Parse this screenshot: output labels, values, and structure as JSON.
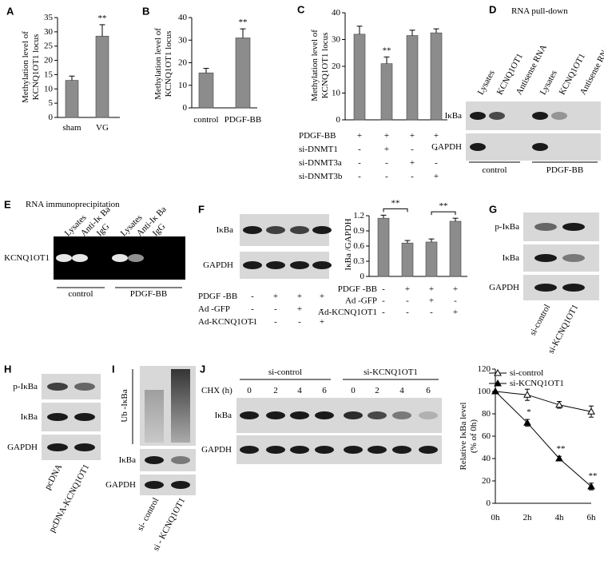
{
  "chart_data": [
    {
      "type": "bar",
      "panel": "A",
      "ylabel": [
        "Methylation level of",
        "KCNQ1OT1 locus"
      ],
      "categories": [
        "sham",
        "VG"
      ],
      "values": [
        13,
        28.5
      ],
      "errors": [
        1.5,
        4
      ],
      "annotations": [
        "**"
      ],
      "color": "#8c8c8c",
      "ylim": [
        0,
        35
      ],
      "yticks": [
        0,
        5,
        10,
        15,
        20,
        25,
        30,
        35
      ]
    },
    {
      "type": "bar",
      "panel": "B",
      "ylabel": [
        "Methylation level of",
        "KCNQ1OT1 locus"
      ],
      "categories": [
        "control",
        "PDGF-BB"
      ],
      "values": [
        15.5,
        31
      ],
      "errors": [
        2,
        4
      ],
      "annotations": [
        "**"
      ],
      "color": "#8c8c8c",
      "ylim": [
        0,
        40
      ],
      "yticks": [
        0,
        10,
        20,
        30,
        40
      ]
    },
    {
      "type": "bar",
      "panel": "C",
      "ylabel": [
        "Methylation level of",
        "KCNQ1OT1 locus"
      ],
      "values": [
        32,
        21,
        31.5,
        32.5
      ],
      "errors": [
        3,
        2.5,
        2,
        1.5
      ],
      "annotations": [
        "**"
      ],
      "color": "#8c8c8c",
      "ylim": [
        0,
        40
      ],
      "yticks": [
        0,
        10,
        20,
        30,
        40
      ],
      "treatments": [
        {
          "label": "PDGF-BB",
          "signs": [
            "+",
            "+",
            "+",
            "+"
          ]
        },
        {
          "label": "si-DNMT1",
          "signs": [
            "-",
            "+",
            "-",
            "-"
          ]
        },
        {
          "label": "si-DNMT3a",
          "signs": [
            "-",
            "-",
            "+",
            "-"
          ]
        },
        {
          "label": "si-DNMT3b",
          "signs": [
            "-",
            "-",
            "-",
            "+"
          ]
        }
      ]
    },
    {
      "type": "bar",
      "ylabel": [
        "IκBa /GAPDH"
      ],
      "values": [
        1.15,
        0.66,
        0.68,
        1.09
      ],
      "errors": [
        0.06,
        0.05,
        0.06,
        0.06
      ],
      "annotations": [
        "**",
        "**"
      ],
      "color": "#8c8c8c",
      "ylim": [
        0,
        1.2
      ],
      "yticks": [
        0,
        0.3,
        0.6,
        0.9,
        1.2
      ],
      "treatments": [
        {
          "label": "PDGF -BB",
          "signs": [
            "-",
            "+",
            "+",
            "+"
          ]
        },
        {
          "label": "Ad -GFP",
          "signs": [
            "-",
            "-",
            "+",
            "-"
          ]
        },
        {
          "label": "Ad-KCNQ1OT1",
          "signs": [
            "-",
            "-",
            "-",
            "+"
          ]
        }
      ]
    },
    {
      "type": "line",
      "ylabel": [
        "Relative IκBa level",
        "(% of 0h)"
      ],
      "categories": [
        "0h",
        "2h",
        "4h",
        "6h"
      ],
      "annotations": [
        "*",
        "**",
        "**"
      ],
      "ylim": [
        0,
        120
      ],
      "yticks": [
        0,
        20,
        40,
        60,
        80,
        100,
        120
      ],
      "series": [
        {
          "name": "si-control",
          "color": "#000000",
          "marker": "open-triangle",
          "values": [
            100,
            97,
            88,
            82
          ],
          "errors": [
            0,
            5,
            3,
            5
          ]
        },
        {
          "name": "si-KCNQ1OT1",
          "color": "#000000",
          "marker": "filled-triangle",
          "values": [
            100,
            72,
            40,
            15
          ],
          "errors": [
            0,
            3,
            2,
            3
          ]
        }
      ]
    }
  ],
  "blots": [
    {
      "panel": "D",
      "title": "RNA pull-down",
      "lanes": [
        "Lysates",
        "KCNQ1OT1",
        "Antisense RNA",
        "Lysates",
        "KCNQ1OT1",
        "Antisense RNA"
      ],
      "rows": [
        "IκBa",
        "GAPDH"
      ],
      "groups": [
        "control",
        "PDGF-BB"
      ]
    },
    {
      "panel": "E",
      "title": "RNA immunoprecipitation",
      "lanes": [
        "Lysates",
        "Anti-Iκ Ba",
        "IgG",
        "Lysates",
        "Anti-Iκ Ba",
        "IgG"
      ],
      "rows": [
        "KCNQ1OT1"
      ],
      "groups": [
        "control",
        "PDGF-BB"
      ]
    },
    {
      "panel": "F",
      "rows": [
        "IκBa",
        "GAPDH"
      ],
      "treatments": [
        {
          "label": "PDGF -BB",
          "signs": [
            "-",
            "+",
            "+",
            "+"
          ]
        },
        {
          "label": "Ad -GFP",
          "signs": [
            "-",
            "-",
            "+",
            "-"
          ]
        },
        {
          "label": "Ad-KCNQ1OT1",
          "signs": [
            "-",
            "-",
            "-",
            "+"
          ]
        }
      ]
    },
    {
      "panel": "G",
      "rows": [
        "p-IκBa",
        "IκBa",
        "GAPDH"
      ],
      "lanes": [
        "si-control",
        "si-KCNQ1OT1"
      ]
    },
    {
      "panel": "H",
      "rows": [
        "p-IκBa",
        "IκBa",
        "GAPDH"
      ],
      "lanes": [
        "pcDNA",
        "pcDNA-KCNQ1OT1"
      ]
    },
    {
      "panel": "I",
      "rows": [
        "Ub -IκBa",
        "IκBa",
        "GAPDH"
      ],
      "lanes": [
        "si- control",
        "si - KCNQ1OT1"
      ]
    },
    {
      "panel": "J",
      "condition": "CHX (h)",
      "lanes": [
        "0",
        "2",
        "4",
        "6",
        "0",
        "2",
        "4",
        "6"
      ],
      "rows": [
        "IκBa",
        "GAPDH"
      ],
      "groups": [
        "si-control",
        "si-KCNQ1OT1"
      ]
    }
  ]
}
